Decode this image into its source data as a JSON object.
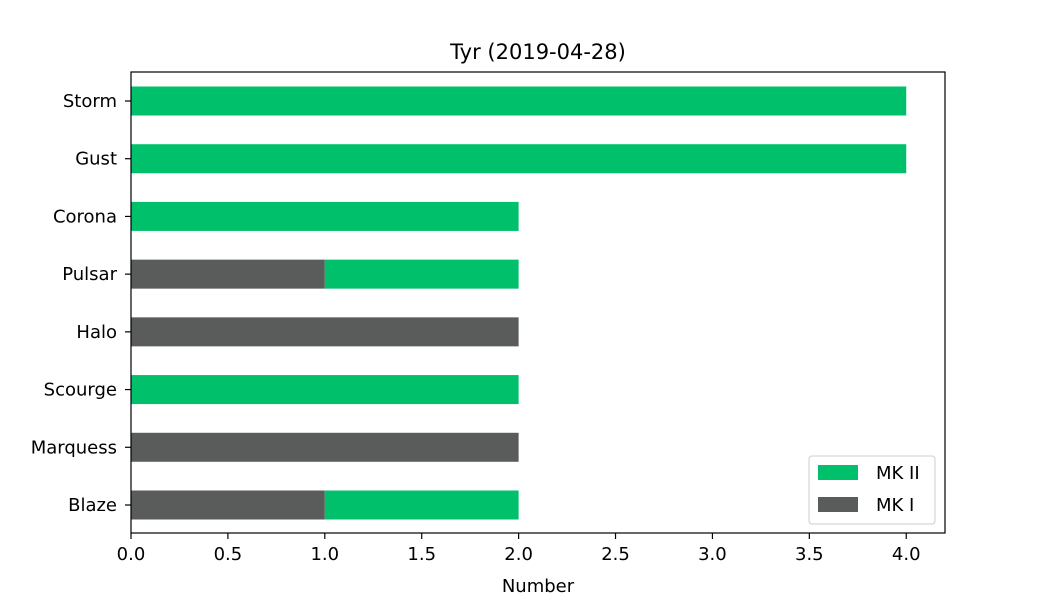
{
  "chart_data": {
    "type": "bar",
    "orientation": "horizontal",
    "stacked": true,
    "title": "Tyr (2019-04-28)",
    "xlabel": "Number",
    "ylabel": "",
    "xlim": [
      0,
      4.2
    ],
    "xticks": [
      "0.0",
      "0.5",
      "1.0",
      "1.5",
      "2.0",
      "2.5",
      "3.0",
      "3.5",
      "4.0"
    ],
    "categories": [
      "Storm",
      "Gust",
      "Corona",
      "Pulsar",
      "Halo",
      "Scourge",
      "Marquess",
      "Blaze"
    ],
    "series": [
      {
        "name": "MK I",
        "color": "#5a5c5b",
        "values": [
          0,
          0,
          0,
          1,
          2,
          0,
          2,
          1
        ]
      },
      {
        "name": "MK II",
        "color": "#00c06b",
        "values": [
          4,
          4,
          2,
          1,
          0,
          2,
          0,
          1
        ]
      }
    ],
    "legend": {
      "position": "lower-right",
      "entries": [
        "MK II",
        "MK I"
      ]
    },
    "grid": false
  }
}
